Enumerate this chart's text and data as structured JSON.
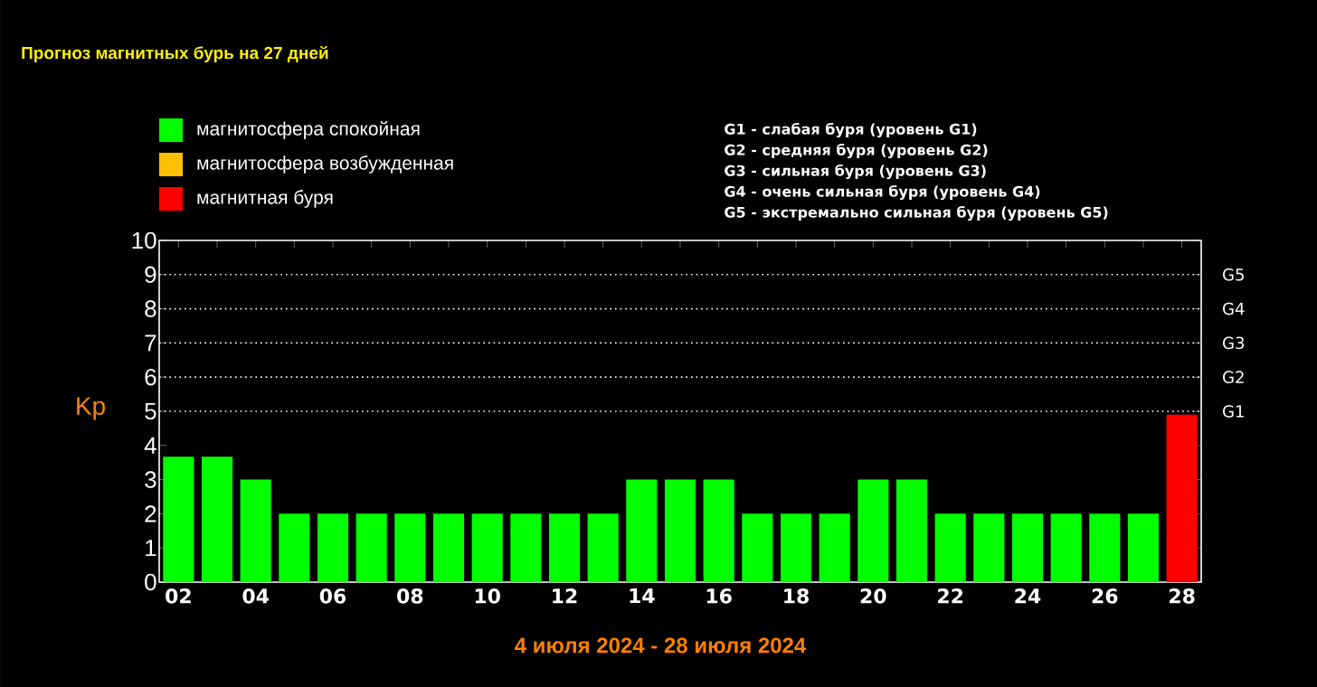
{
  "chart_data": {
    "type": "bar",
    "title": "Прогноз магнитных бурь на 27 дней",
    "xlabel": "4 июля 2024 - 28 июля 2024",
    "ylabel": "Kp",
    "categories": [
      "02",
      null,
      "04",
      null,
      "06",
      null,
      "08",
      null,
      "10",
      null,
      "12",
      null,
      "14",
      null,
      "16",
      null,
      "18",
      null,
      "20",
      null,
      "22",
      null,
      "24",
      null,
      "26",
      null,
      "28"
    ],
    "stacked": true,
    "series": [
      {
        "name": "магнитосфера спокойная",
        "color": "#00ff00",
        "values": [
          3.67,
          3.67,
          3,
          2,
          2,
          2,
          2,
          2,
          2,
          2,
          2,
          2,
          3,
          3,
          3,
          2,
          2,
          2,
          3,
          3,
          2,
          2,
          2,
          2,
          2,
          2,
          null
        ]
      },
      {
        "name": "магнитосфера возбужденная",
        "color": "#ffc000",
        "values": [
          null,
          null,
          null,
          null,
          null,
          null,
          null,
          null,
          null,
          null,
          null,
          null,
          null,
          null,
          null,
          null,
          null,
          null,
          null,
          null,
          null,
          null,
          null,
          null,
          null,
          null,
          null
        ]
      },
      {
        "name": "магнитная буря",
        "color": "#ff0000",
        "values": [
          null,
          null,
          null,
          null,
          null,
          null,
          null,
          null,
          null,
          null,
          null,
          null,
          null,
          null,
          null,
          null,
          null,
          null,
          null,
          null,
          null,
          null,
          null,
          null,
          null,
          null,
          4.9
        ]
      }
    ],
    "ylim": [
      0,
      10
    ],
    "yticks": [
      0,
      1,
      2,
      3,
      4,
      5,
      6,
      7,
      8,
      9,
      10
    ],
    "ref_lines": [
      {
        "axis": "y",
        "value": 5,
        "label": "G1",
        "color": "#ffffff",
        "line_style": "dotted"
      },
      {
        "axis": "y",
        "value": 6,
        "label": "G2",
        "color": "#ffffff",
        "line_style": "dotted"
      },
      {
        "axis": "y",
        "value": 7,
        "label": "G3",
        "color": "#ffffff",
        "line_style": "dotted"
      },
      {
        "axis": "y",
        "value": 8,
        "label": "G4",
        "color": "#ffffff",
        "line_style": "dotted"
      },
      {
        "axis": "y",
        "value": 9,
        "label": "G5",
        "color": "#ffffff",
        "line_style": "dotted"
      }
    ],
    "grid": false,
    "legend": "top left",
    "annotations": [
      "G1 - слабая буря (уровень G1)",
      "G2 - средняя буря (уровень G2)",
      "G3 - сильная буря (уровень G3)",
      "G4 - очень сильная буря (уровень G4)",
      "G5 - экстремально сильная буря (уровень G5)"
    ]
  }
}
